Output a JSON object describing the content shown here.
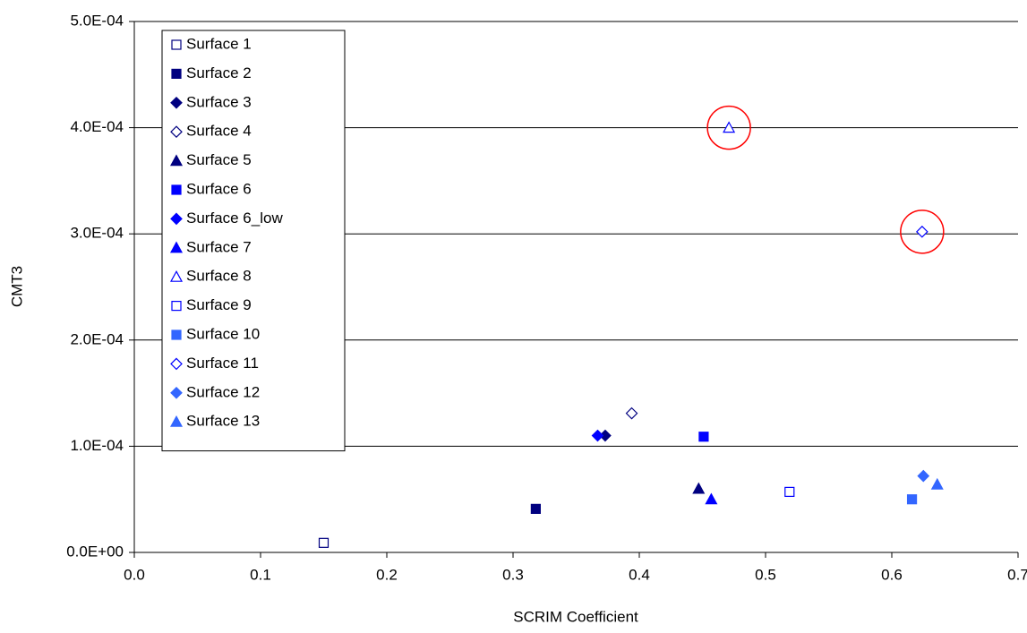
{
  "chart_data": {
    "type": "scatter",
    "x_label": "SCRIM Coefficient",
    "y_label": "CMT3",
    "xlim": [
      0,
      0.7
    ],
    "xticks": [
      {
        "value": 0,
        "label": "0.0"
      },
      {
        "value": 0.1,
        "label": "0.1"
      },
      {
        "value": 0.2,
        "label": "0.2"
      },
      {
        "value": 0.3,
        "label": "0.3"
      },
      {
        "value": 0.4,
        "label": "0.4"
      },
      {
        "value": 0.5,
        "label": "0.5"
      },
      {
        "value": 0.6,
        "label": "0.6"
      },
      {
        "value": 0.7,
        "label": "0.7"
      }
    ],
    "ylim": [
      0,
      0.0005
    ],
    "yticks": [
      {
        "value": 0,
        "label": "0.0E+00"
      },
      {
        "value": 0.0001,
        "label": "1.0E-04"
      },
      {
        "value": 0.0002,
        "label": "2.0E-04"
      },
      {
        "value": 0.0003,
        "label": "3.0E-04"
      },
      {
        "value": 0.0004,
        "label": "4.0E-04"
      },
      {
        "value": 0.0005,
        "label": "5.0E-04"
      }
    ],
    "grid": true,
    "legend": "upper left",
    "highlight_color": "#ff0000",
    "series": [
      {
        "name": "Surface 1",
        "color": "#000080",
        "marker": "square",
        "filled": false,
        "x": [
          0.15
        ],
        "values": [
          9e-06
        ]
      },
      {
        "name": "Surface 2",
        "color": "#000080",
        "marker": "square",
        "filled": true,
        "x": [
          0.318
        ],
        "values": [
          4.1e-05
        ]
      },
      {
        "name": "Surface 3",
        "color": "#000080",
        "marker": "diamond",
        "filled": true,
        "x": [
          0.373
        ],
        "values": [
          0.00011
        ]
      },
      {
        "name": "Surface 4",
        "color": "#000080",
        "marker": "diamond",
        "filled": false,
        "x": [
          0.394
        ],
        "values": [
          0.000131
        ]
      },
      {
        "name": "Surface 5",
        "color": "#000080",
        "marker": "triangle",
        "filled": true,
        "x": [
          0.447
        ],
        "values": [
          6e-05
        ]
      },
      {
        "name": "Surface 6",
        "color": "#0000ff",
        "marker": "square",
        "filled": true,
        "x": [
          0.451
        ],
        "values": [
          0.000109
        ]
      },
      {
        "name": "Surface 6_low",
        "color": "#0000ff",
        "marker": "diamond",
        "filled": true,
        "x": [
          0.367
        ],
        "values": [
          0.00011
        ]
      },
      {
        "name": "Surface 7",
        "color": "#0000ff",
        "marker": "triangle",
        "filled": true,
        "x": [
          0.457
        ],
        "values": [
          5e-05
        ]
      },
      {
        "name": "Surface 8",
        "color": "#0000ff",
        "marker": "triangle",
        "filled": false,
        "x": [
          0.471
        ],
        "values": [
          0.0004
        ],
        "highlight": true
      },
      {
        "name": "Surface 9",
        "color": "#0000ff",
        "marker": "square",
        "filled": false,
        "x": [
          0.519
        ],
        "values": [
          5.7e-05
        ]
      },
      {
        "name": "Surface 10",
        "color": "#3366ff",
        "marker": "square",
        "filled": true,
        "x": [
          0.616
        ],
        "values": [
          5e-05
        ]
      },
      {
        "name": "Surface 11",
        "color": "#0000ff",
        "marker": "diamond",
        "filled": false,
        "x": [
          0.624
        ],
        "values": [
          0.000302
        ],
        "highlight": true
      },
      {
        "name": "Surface 12",
        "color": "#3366ff",
        "marker": "diamond",
        "filled": true,
        "x": [
          0.625
        ],
        "values": [
          7.2e-05
        ]
      },
      {
        "name": "Surface 13",
        "color": "#3366ff",
        "marker": "triangle",
        "filled": true,
        "x": [
          0.636
        ],
        "values": [
          6.4e-05
        ]
      }
    ]
  }
}
